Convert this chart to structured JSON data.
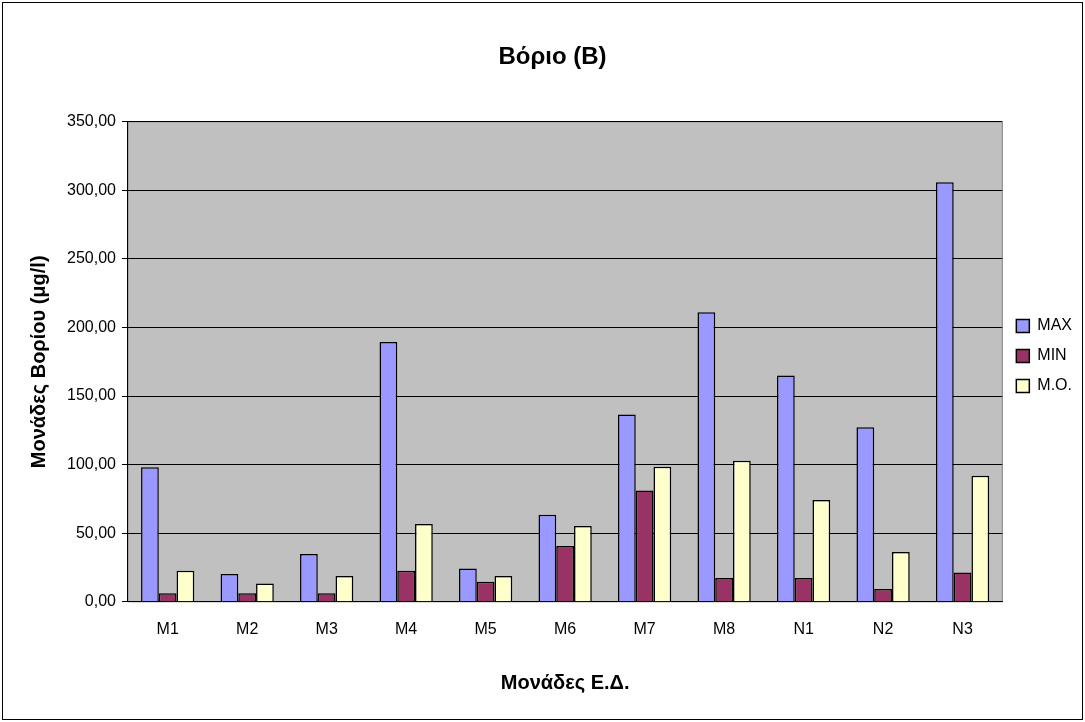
{
  "chart_data": {
    "type": "bar",
    "title": "Βόριο (Β)",
    "xlabel": "Μονάδες Ε.Δ.",
    "ylabel": "Μονάδες Βορίου (μg/l)",
    "categories": [
      "M1",
      "M2",
      "M3",
      "M4",
      "M5",
      "M6",
      "M7",
      "M8",
      "N1",
      "N2",
      "N3"
    ],
    "series": [
      {
        "name": "MAX",
        "color": "#9999ff",
        "values": [
          98.2,
          20.2,
          34.8,
          189.4,
          24.2,
          63.5,
          136.5,
          211.1,
          165,
          127.2,
          306
        ]
      },
      {
        "name": "MIN",
        "color": "#993366",
        "values": [
          6.3,
          6.3,
          6.3,
          22.7,
          14.6,
          40.6,
          81.1,
          17.4,
          17.4,
          9.3,
          21.4
        ]
      },
      {
        "name": "M.O.",
        "color": "#ffffcc",
        "values": [
          22.7,
          13.4,
          18.9,
          56.7,
          18.9,
          55.2,
          98.5,
          102.8,
          74.3,
          36.3,
          91.9
        ]
      }
    ],
    "ylim": [
      0,
      350
    ],
    "yticks": [
      {
        "value": 0,
        "label": "0,00"
      },
      {
        "value": 50,
        "label": "50,00"
      },
      {
        "value": 100,
        "label": "100,00"
      },
      {
        "value": 150,
        "label": "150,00"
      },
      {
        "value": 200,
        "label": "200,00"
      },
      {
        "value": 250,
        "label": "250,00"
      },
      {
        "value": 300,
        "label": "300,00"
      },
      {
        "value": 350,
        "label": "350,00"
      }
    ],
    "grid": "y",
    "legend": "right"
  }
}
